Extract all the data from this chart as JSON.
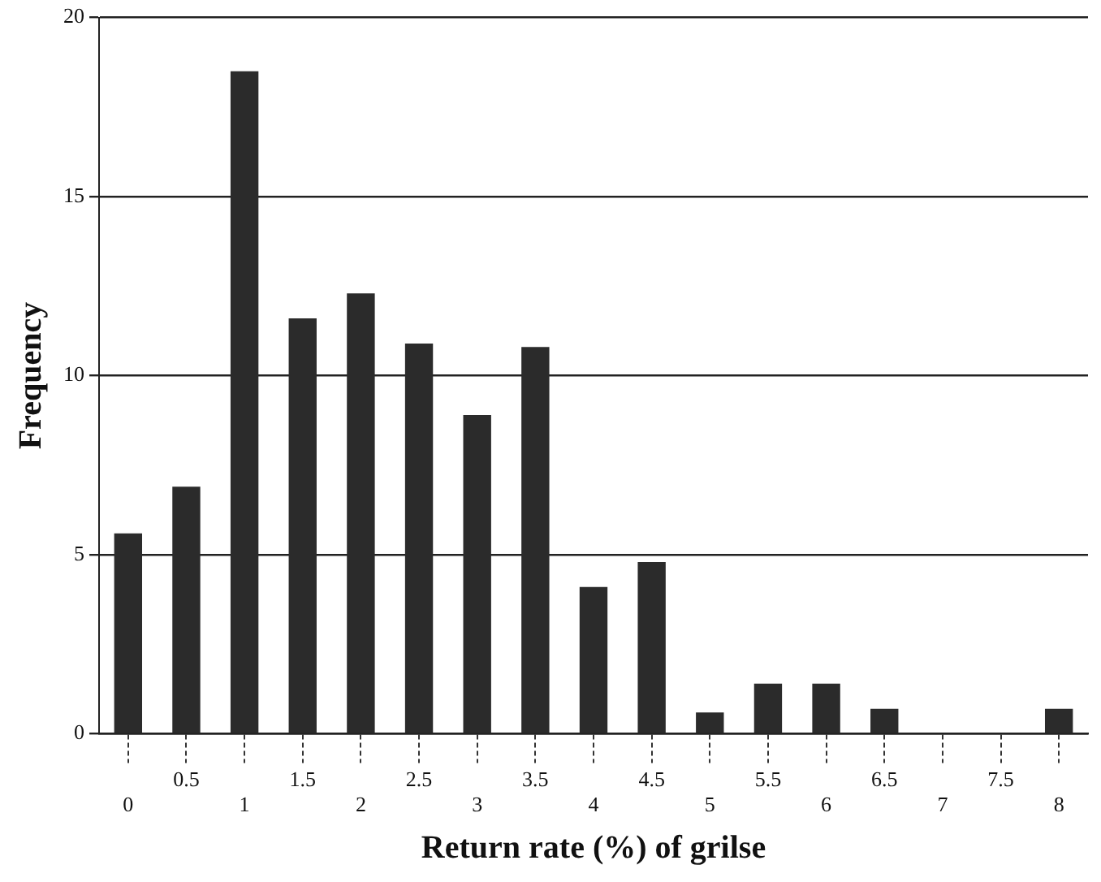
{
  "chart_data": {
    "type": "bar",
    "xlabel": "Return rate (%) of grilse",
    "ylabel": "Frequency",
    "categories": [
      "0",
      "0.5",
      "1",
      "1.5",
      "2",
      "2.5",
      "3",
      "3.5",
      "4",
      "4.5",
      "5",
      "5.5",
      "6",
      "6.5",
      "7",
      "7.5",
      "8"
    ],
    "values": [
      5.6,
      6.9,
      18.5,
      11.6,
      12.3,
      10.9,
      8.9,
      10.8,
      4.1,
      4.8,
      0.6,
      1.4,
      1.4,
      0.7,
      0,
      0,
      0.7
    ],
    "color": "#2b2b2b",
    "ylim": [
      0,
      20
    ],
    "yticks": [
      0,
      5,
      10,
      15,
      20
    ],
    "grid": "y",
    "legend": false
  }
}
